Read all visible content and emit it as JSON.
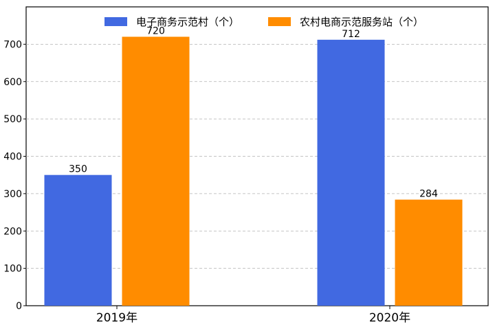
{
  "chart_data": {
    "type": "bar",
    "categories": [
      "2019年",
      "2020年"
    ],
    "series": [
      {
        "name": "电子商务示范村（个）",
        "values": [
          350,
          712
        ],
        "color": "#4169E1"
      },
      {
        "name": "农村电商示范服务站（个）",
        "values": [
          720,
          284
        ],
        "color": "#FF8C00"
      }
    ],
    "title": "",
    "xlabel": "",
    "ylabel": "",
    "ylim": [
      0,
      800
    ],
    "yticks": [
      0,
      100,
      200,
      300,
      400,
      500,
      600,
      700
    ],
    "grid": true,
    "legend_position": "top"
  }
}
